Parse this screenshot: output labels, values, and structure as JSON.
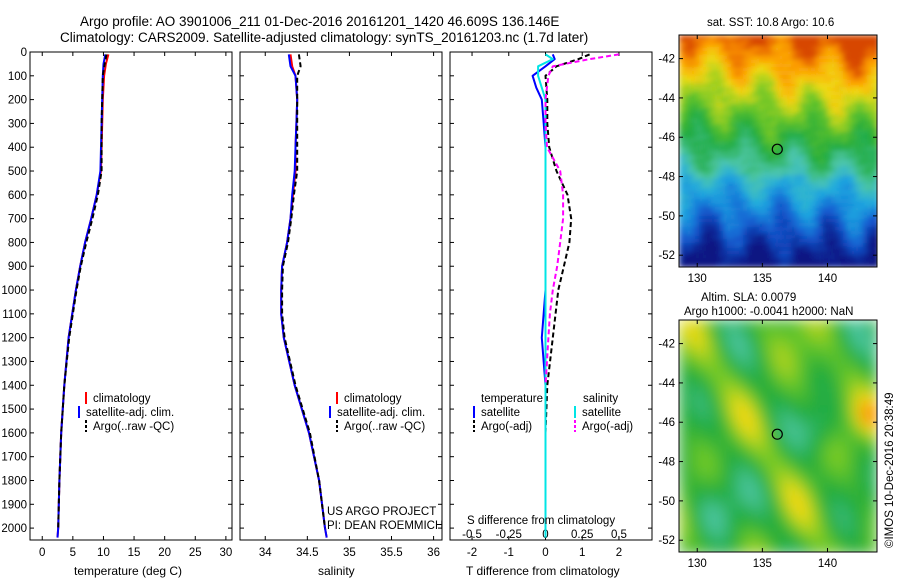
{
  "titles": {
    "line1": "Argo profile: AO 3901006_211 01-Dec-2016 20161201_1420 46.609S 136.146E",
    "line2": "Climatology: CARS2009. Satellite-adjusted climatology: synTS_20161203.nc (1.7d later)"
  },
  "credit": {
    "project": "US ARGO PROJECT",
    "pi": "PI: DEAN ROEMMICH",
    "imos": "©IMOS 10-Dec-2016 20:38:49"
  },
  "chart_data": [
    {
      "type": "line",
      "id": "temperature_profile",
      "xlabel": "temperature (deg C)",
      "ylim": [
        2050,
        0
      ],
      "xlim": [
        -2,
        31
      ],
      "xticks": [
        0,
        5,
        10,
        15,
        20,
        25,
        30
      ],
      "yticks": [
        0,
        100,
        200,
        300,
        400,
        500,
        600,
        700,
        800,
        900,
        1000,
        1100,
        1200,
        1300,
        1400,
        1500,
        1600,
        1700,
        1800,
        1900,
        2000
      ],
      "legend": [
        "climatology",
        "satellite-adj. clim.",
        "Argo(..raw -QC)"
      ],
      "series": [
        {
          "name": "climatology",
          "color": "#ff0000",
          "style": "solid",
          "depth": [
            10,
            50,
            100,
            200,
            300,
            400,
            500,
            600,
            700,
            800,
            900,
            1000,
            1200,
            1400,
            1600,
            1800,
            2000,
            2040
          ],
          "values": [
            10.8,
            10.4,
            10.1,
            9.9,
            9.8,
            9.7,
            9.6,
            8.9,
            8.0,
            7.0,
            6.2,
            5.5,
            4.3,
            3.6,
            3.1,
            2.8,
            2.6,
            2.5
          ]
        },
        {
          "name": "satellite-adj. clim.",
          "color": "#0000ff",
          "style": "solid",
          "depth": [
            10,
            50,
            100,
            200,
            300,
            400,
            500,
            600,
            700,
            800,
            900,
            1000,
            1200,
            1400,
            1600,
            1800,
            2000,
            2040
          ],
          "values": [
            10.3,
            10.0,
            9.9,
            9.8,
            9.7,
            9.6,
            9.5,
            8.9,
            8.0,
            7.0,
            6.2,
            5.5,
            4.3,
            3.6,
            3.1,
            2.8,
            2.6,
            2.5
          ]
        },
        {
          "name": "Argo(..raw -QC)",
          "color": "#000000",
          "style": "dashed",
          "depth": [
            10,
            50,
            100,
            200,
            300,
            400,
            500,
            600,
            700,
            800,
            900,
            1000,
            1200,
            1400,
            1600,
            1800,
            2000
          ],
          "values": [
            10.5,
            10.2,
            9.9,
            9.8,
            9.7,
            9.7,
            9.7,
            9.1,
            8.2,
            7.2,
            6.3,
            5.6,
            4.4,
            3.6,
            3.1,
            2.8,
            2.6
          ]
        }
      ]
    },
    {
      "type": "line",
      "id": "salinity_profile",
      "xlabel": "salinity",
      "ylim": [
        2050,
        0
      ],
      "xlim": [
        33.7,
        36.1
      ],
      "xticks": [
        34,
        34.5,
        35,
        35.5,
        36
      ],
      "legend": [
        "climatology",
        "satellite-adj. clim.",
        "Argo(..raw -QC)"
      ],
      "series": [
        {
          "name": "climatology",
          "color": "#ff0000",
          "style": "solid",
          "depth": [
            10,
            60,
            100,
            200,
            300,
            400,
            500,
            600,
            700,
            800,
            900,
            1000,
            1100,
            1200,
            1400,
            1600,
            1800,
            2000,
            2040
          ],
          "values": [
            34.3,
            34.32,
            34.36,
            34.38,
            34.37,
            34.36,
            34.36,
            34.33,
            34.3,
            34.26,
            34.2,
            34.19,
            34.19,
            34.22,
            34.35,
            34.52,
            34.64,
            34.71,
            34.73
          ]
        },
        {
          "name": "satellite-adj. clim.",
          "color": "#0000ff",
          "style": "solid",
          "depth": [
            10,
            60,
            100,
            200,
            300,
            400,
            500,
            600,
            700,
            800,
            900,
            1000,
            1100,
            1200,
            1400,
            1600,
            1800,
            2000,
            2040
          ],
          "values": [
            34.28,
            34.3,
            34.36,
            34.38,
            34.37,
            34.36,
            34.35,
            34.32,
            34.3,
            34.26,
            34.2,
            34.19,
            34.19,
            34.22,
            34.35,
            34.52,
            34.64,
            34.71,
            34.73
          ]
        },
        {
          "name": "Argo(..raw -QC)",
          "color": "#000000",
          "style": "dashed",
          "depth": [
            10,
            60,
            100,
            200,
            300,
            400,
            500,
            600,
            700,
            800,
            900,
            1000,
            1100,
            1200,
            1400,
            1600,
            1800,
            2000
          ],
          "values": [
            34.4,
            34.42,
            34.38,
            34.38,
            34.38,
            34.38,
            34.38,
            34.34,
            34.31,
            34.27,
            34.21,
            34.2,
            34.2,
            34.23,
            34.36,
            34.53,
            34.64,
            34.71
          ]
        }
      ]
    },
    {
      "type": "line",
      "id": "difference_profile",
      "xlabel": "T difference from climatology",
      "xlabel2": "S difference from climatology",
      "ylim": [
        2050,
        0
      ],
      "xlim": [
        -2.6,
        2.9
      ],
      "xticks": [
        -2,
        -1,
        0,
        1,
        2
      ],
      "xtick_labels": [
        "-2",
        "-1",
        "0",
        "1",
        "2"
      ],
      "sticks": [
        -0.5,
        -0.25,
        0,
        0.25,
        0.5
      ],
      "stick_labels": [
        "-0.5",
        "-0.25",
        "0",
        "0.25",
        "0.5"
      ],
      "legend_headers": [
        "temperature",
        "salinity"
      ],
      "legend": [
        "satellite",
        "Argo(-adj)",
        "satellite",
        "Argo(-adj)"
      ],
      "series": [
        {
          "name": "satellite",
          "quantity": "temperature",
          "color": "#0000ff",
          "style": "solid",
          "depth": [
            10,
            30,
            60,
            100,
            150,
            200,
            300,
            400,
            500,
            700,
            1000,
            1200,
            1400
          ],
          "values": [
            0.2,
            0.25,
            0.0,
            -0.35,
            -0.25,
            -0.1,
            -0.05,
            0.0,
            0.0,
            0.0,
            0.0,
            -0.1,
            0.0
          ]
        },
        {
          "name": "Argo(-adj)",
          "quantity": "temperature",
          "color": "#000000",
          "style": "dashed",
          "depth": [
            10,
            30,
            60,
            100,
            200,
            300,
            400,
            500,
            600,
            700,
            800,
            900,
            1000,
            1200,
            1400,
            1600,
            1800,
            2000
          ],
          "values": [
            1.2,
            0.9,
            0.3,
            0.0,
            0.05,
            0.05,
            0.1,
            0.3,
            0.6,
            0.7,
            0.65,
            0.5,
            0.35,
            0.2,
            0.05,
            0.0,
            0.0,
            0.0
          ]
        },
        {
          "name": "satellite",
          "quantity": "salinity",
          "color": "#00e5e5",
          "style": "solid",
          "depth": [
            10,
            30,
            60,
            100,
            200,
            300,
            400,
            500,
            700,
            1000,
            1300,
            1600,
            2000,
            2040
          ],
          "values": [
            0.0,
            0.05,
            -0.05,
            -0.05,
            0.0,
            0.0,
            0.0,
            0.0,
            0.0,
            0.0,
            0.0,
            0.0,
            0.0,
            0.0
          ]
        },
        {
          "name": "Argo(-adj)",
          "quantity": "salinity",
          "color": "#ff00ff",
          "style": "dashed",
          "depth": [
            10,
            30,
            60,
            100,
            200,
            300,
            400,
            500,
            600,
            700,
            800,
            900,
            1000,
            1100,
            1200,
            1400
          ],
          "values": [
            0.5,
            0.3,
            0.05,
            0.02,
            0.0,
            0.0,
            0.01,
            0.1,
            0.12,
            0.12,
            0.1,
            0.08,
            0.05,
            0.03,
            0.02,
            0.0
          ]
        }
      ]
    },
    {
      "type": "heatmap",
      "id": "sst_map",
      "title": "sat. SST: 10.8  Argo: 10.6",
      "xlim": [
        128.6,
        143.8
      ],
      "ylim": [
        -52.6,
        -40.8
      ],
      "xticks": [
        130,
        135,
        140
      ],
      "yticks": [
        -42,
        -44,
        -46,
        -48,
        -50,
        -52
      ],
      "marker": {
        "lon": 136.146,
        "lat": -46.609
      }
    },
    {
      "type": "heatmap",
      "id": "sla_map",
      "title_line1": "Altim. SLA: 0.0079",
      "title_line2": "Argo h1000: -0.0041 h2000: NaN",
      "xlim": [
        128.6,
        143.8
      ],
      "ylim": [
        -52.6,
        -40.8
      ],
      "xticks": [
        130,
        135,
        140
      ],
      "yticks": [
        -42,
        -44,
        -46,
        -48,
        -50,
        -52
      ],
      "marker": {
        "lon": 136.146,
        "lat": -46.609
      }
    }
  ]
}
